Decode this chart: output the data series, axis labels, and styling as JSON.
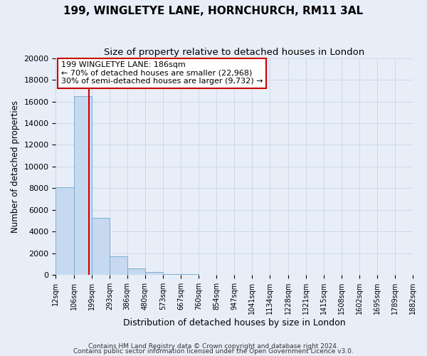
{
  "title": "199, WINGLETYE LANE, HORNCHURCH, RM11 3AL",
  "subtitle": "Size of property relative to detached houses in London",
  "xlabel": "Distribution of detached houses by size in London",
  "ylabel": "Number of detached properties",
  "bin_edges": [
    12,
    106,
    199,
    293,
    386,
    480,
    573,
    667,
    760,
    854,
    947,
    1041,
    1134,
    1228,
    1321,
    1415,
    1508,
    1602,
    1695,
    1789,
    1882
  ],
  "bar_heights": [
    8100,
    16500,
    5300,
    1750,
    600,
    300,
    100,
    100,
    0,
    0,
    0,
    0,
    0,
    0,
    0,
    0,
    0,
    0,
    0,
    0
  ],
  "bar_color": "#c6d9f0",
  "bar_edge_color": "#7bafd4",
  "vline_x": 186,
  "vline_color": "#cc0000",
  "annotation_text": "199 WINGLETYE LANE: 186sqm\n← 70% of detached houses are smaller (22,968)\n30% of semi-detached houses are larger (9,732) →",
  "annotation_box_color": "#ffffff",
  "annotation_box_edge": "#cc0000",
  "ylim": [
    0,
    20000
  ],
  "yticks": [
    0,
    2000,
    4000,
    6000,
    8000,
    10000,
    12000,
    14000,
    16000,
    18000,
    20000
  ],
  "tick_labels": [
    "12sqm",
    "106sqm",
    "199sqm",
    "293sqm",
    "386sqm",
    "480sqm",
    "573sqm",
    "667sqm",
    "760sqm",
    "854sqm",
    "947sqm",
    "1041sqm",
    "1134sqm",
    "1228sqm",
    "1321sqm",
    "1415sqm",
    "1508sqm",
    "1602sqm",
    "1695sqm",
    "1789sqm",
    "1882sqm"
  ],
  "footer1": "Contains HM Land Registry data © Crown copyright and database right 2024.",
  "footer2": "Contains public sector information licensed under the Open Government Licence v3.0.",
  "background_color": "#e8eef8",
  "grid_color": "#c8d4e8",
  "title_fontsize": 11,
  "subtitle_fontsize": 9.5,
  "tick_fontsize": 7,
  "ylabel_fontsize": 8.5,
  "xlabel_fontsize": 9,
  "annotation_fontsize": 8,
  "footer_fontsize": 6.5
}
